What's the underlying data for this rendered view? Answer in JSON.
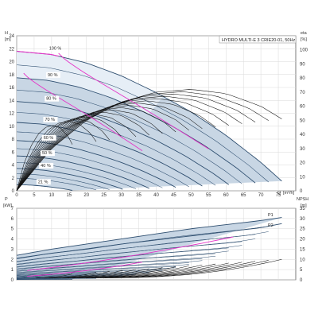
{
  "chart_data": [
    {
      "type": "line",
      "title": "HYDRO MULTI-E 3 CRIE20-01, 50Hz",
      "left_axis": {
        "symbol": "H",
        "unit": "[m]",
        "ylim": [
          0,
          24
        ],
        "ticks": [
          "0",
          "2",
          "4",
          "6",
          "8",
          "10",
          "12",
          "14",
          "16",
          "18",
          "20",
          "22",
          "24"
        ]
      },
      "right_axis": {
        "symbol": "eta",
        "unit": "[%]",
        "ylim": [
          0,
          110
        ],
        "ticks": [
          "0",
          "10",
          "20",
          "30",
          "40",
          "50",
          "60",
          "70",
          "80",
          "90",
          "100"
        ]
      },
      "x_axis": {
        "symbol": "Q",
        "unit": "[m³/h]",
        "xlim": [
          0,
          80
        ],
        "ticks": [
          "0",
          "5",
          "10",
          "15",
          "20",
          "25",
          "30",
          "35",
          "40",
          "45",
          "50",
          "55",
          "60",
          "65",
          "70",
          "75"
        ]
      },
      "grid": true,
      "speed_labels": [
        "100 %",
        "90 %",
        "80 %",
        "70 %",
        "60 %",
        "50 %",
        "40 %",
        "21 %"
      ],
      "speed_fractions": [
        1.0,
        0.9,
        0.8,
        0.7,
        0.6,
        0.5,
        0.4,
        0.21
      ],
      "head_curve_100pct": {
        "x": [
          0,
          10,
          20,
          30,
          40,
          50,
          60,
          70,
          76
        ],
        "y": [
          21.6,
          21.1,
          19.8,
          17.8,
          15.2,
          12.2,
          8.6,
          4.4,
          1.5
        ]
      },
      "efficiency_100pct": {
        "x": [
          0,
          10,
          20,
          30,
          40,
          50,
          60,
          70,
          76
        ],
        "y": [
          0,
          30,
          50,
          63,
          70,
          72,
          69,
          60,
          51
        ]
      }
    },
    {
      "type": "line",
      "left_axis": {
        "symbol": "P",
        "unit": "[kW]",
        "ylim": [
          0,
          7
        ],
        "ticks": [
          "0",
          "1",
          "2",
          "3",
          "4",
          "5",
          "6",
          "7"
        ]
      },
      "right_axis": {
        "symbol": "NPSH",
        "unit": "[m]",
        "ylim": [
          0,
          35
        ],
        "ticks": [
          "0",
          "5",
          "10",
          "15",
          "20",
          "25",
          "30",
          "35"
        ]
      },
      "x_axis": {
        "xlim": [
          0,
          80
        ]
      },
      "grid": true,
      "series": [
        {
          "name": "P1",
          "x": [
            0,
            10,
            20,
            30,
            40,
            50,
            60,
            70,
            76
          ],
          "y": [
            2.4,
            3.0,
            3.5,
            4.0,
            4.5,
            5.0,
            5.4,
            5.8,
            6.1
          ]
        },
        {
          "name": "P2",
          "x": [
            0,
            10,
            20,
            30,
            40,
            50,
            60,
            70,
            76
          ],
          "y": [
            2.1,
            2.6,
            3.0,
            3.5,
            3.9,
            4.3,
            4.7,
            5.1,
            5.5
          ]
        }
      ]
    }
  ],
  "colors": {
    "band": "#c8d6e4",
    "band_band": "#a9bdd2",
    "curve": "#2f4f70",
    "eta": "#111111",
    "pink": "#e535c8",
    "grid": "#d9d9d9"
  }
}
